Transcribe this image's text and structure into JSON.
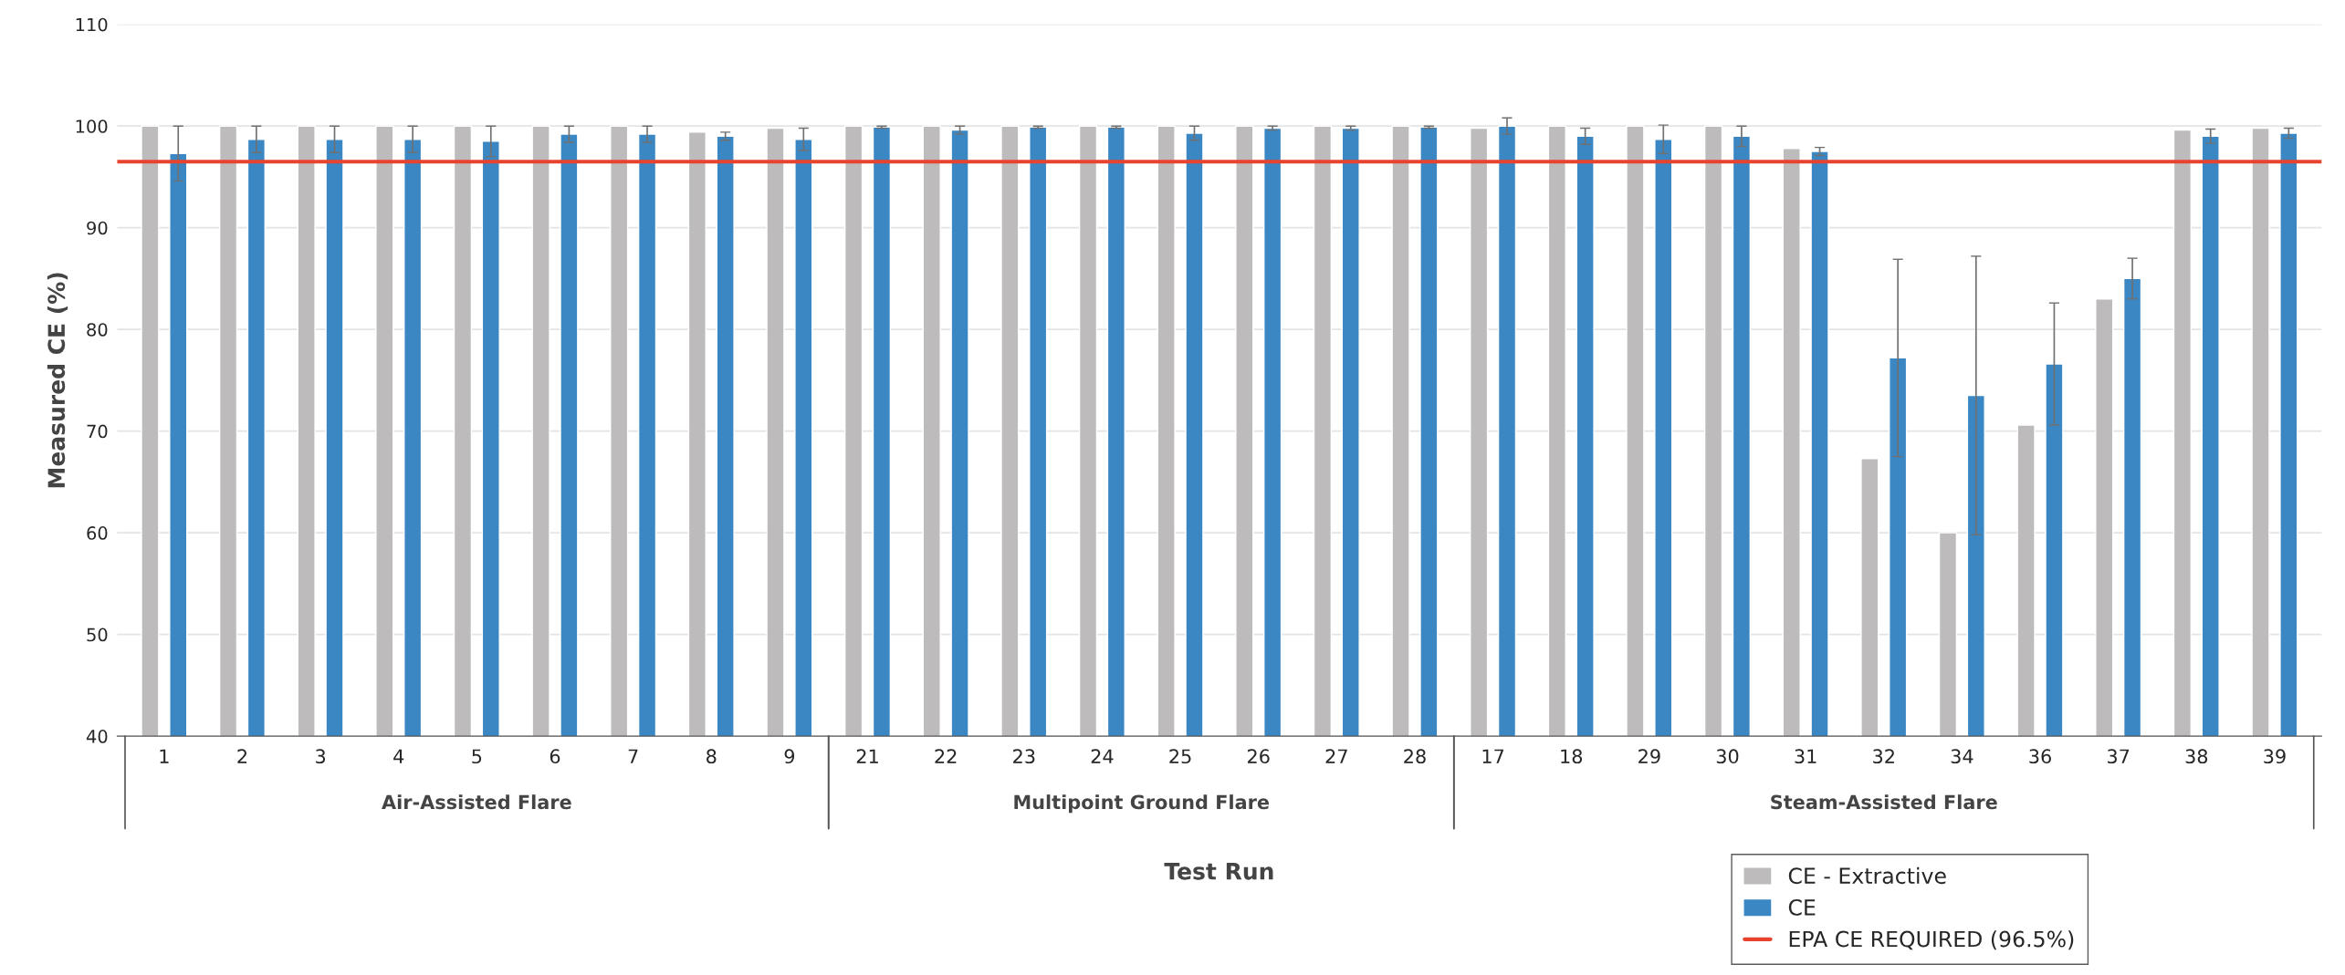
{
  "chart_data": {
    "type": "bar",
    "ylabel": "Measured CE (%)",
    "xlabel": "Test Run",
    "categories": [
      "1",
      "2",
      "3",
      "4",
      "5",
      "6",
      "7",
      "8",
      "9",
      "21",
      "22",
      "23",
      "24",
      "25",
      "26",
      "27",
      "28",
      "17",
      "18",
      "29",
      "30",
      "31",
      "32",
      "34",
      "36",
      "37",
      "38",
      "39"
    ],
    "annotations": [
      "Air-Assisted Flare",
      "Multipoint Ground Flare",
      "Steam-Assisted Flare"
    ],
    "series": [
      {
        "name": "CE - Extractive",
        "color": "#bdbbbb",
        "values": [
          100,
          100,
          100,
          100,
          100,
          100,
          100,
          99.4,
          99.8,
          100,
          100,
          100,
          100,
          100,
          100,
          100,
          100,
          99.8,
          100,
          100,
          100,
          97.8,
          67.3,
          60,
          70.6,
          83,
          99.6,
          99.8
        ]
      },
      {
        "name": "CE",
        "color": "#3a87c4",
        "values": [
          97.3,
          98.7,
          98.7,
          98.7,
          98.5,
          99.2,
          99.2,
          99.0,
          98.7,
          99.9,
          99.6,
          99.9,
          99.9,
          99.3,
          99.8,
          99.8,
          99.9,
          100,
          99.0,
          98.7,
          99.0,
          97.5,
          77.2,
          73.5,
          76.6,
          85,
          99.0,
          99.3
        ],
        "errors": [
          2.7,
          1.3,
          1.3,
          1.3,
          1.5,
          0.8,
          0.8,
          0.4,
          1.1,
          0.1,
          0.4,
          0.1,
          0.1,
          0.7,
          0.2,
          0.2,
          0.1,
          0.8,
          0.8,
          1.4,
          1.0,
          0.4,
          9.7,
          13.7,
          6,
          2,
          0.7,
          0.5
        ]
      }
    ],
    "ylim": [
      40,
      110
    ],
    "yticks": [
      40,
      50,
      60,
      70,
      80,
      90,
      100,
      110
    ],
    "ref_lines": [
      {
        "axis": "y",
        "value": 96.5,
        "label": "EPA CE REQUIRED (96.5%)",
        "color": "#e8432f"
      }
    ],
    "grid": "y",
    "legend": "bottom right"
  }
}
